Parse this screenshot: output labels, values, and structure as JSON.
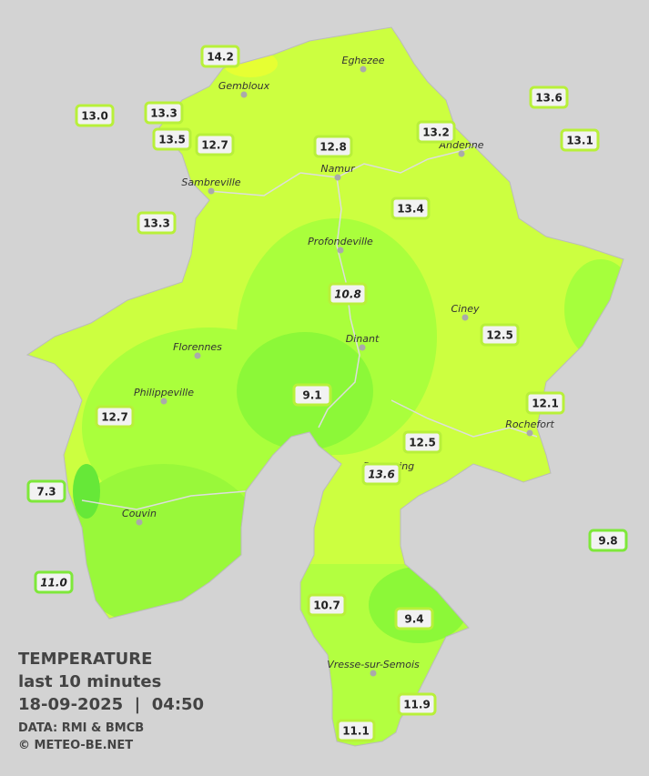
{
  "legend": {
    "title": "TEMPERATURE",
    "period": "last 10 minutes",
    "datetime": "18-09-2025  |  04:50",
    "source": "DATA: RMI & BMCB",
    "credit": "© METEO-BE.NET"
  },
  "towns": [
    "Eghezee",
    "Gembloux",
    "Andenne",
    "Namur",
    "Sambreville",
    "Profondeville",
    "Ciney",
    "Dinant",
    "Florennes",
    "Philippeville",
    "Rochefort",
    "Beauraing",
    "Couvin",
    "Vresse-sur-Semois"
  ],
  "stations": [
    "14.2",
    "13.0",
    "13.3",
    "13.5",
    "12.7",
    "12.8",
    "13.2",
    "13.6",
    "13.1",
    "13.3",
    "13.4",
    "10.8",
    "12.5",
    "9.1",
    "12.1",
    "12.7",
    "12.5",
    "13.6",
    "7.3",
    "9.8",
    "11.0",
    "10.7",
    "9.4",
    "11.9",
    "11.1"
  ]
}
